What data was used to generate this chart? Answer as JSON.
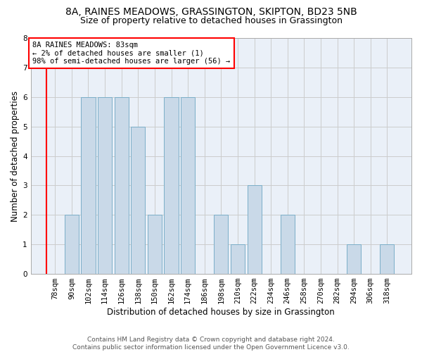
{
  "title1": "8A, RAINES MEADOWS, GRASSINGTON, SKIPTON, BD23 5NB",
  "title2": "Size of property relative to detached houses in Grassington",
  "xlabel": "Distribution of detached houses by size in Grassington",
  "ylabel": "Number of detached properties",
  "categories": [
    "78sqm",
    "90sqm",
    "102sqm",
    "114sqm",
    "126sqm",
    "138sqm",
    "150sqm",
    "162sqm",
    "174sqm",
    "186sqm",
    "198sqm",
    "210sqm",
    "222sqm",
    "234sqm",
    "246sqm",
    "258sqm",
    "270sqm",
    "282sqm",
    "294sqm",
    "306sqm",
    "318sqm"
  ],
  "values": [
    0,
    2,
    6,
    6,
    6,
    5,
    2,
    6,
    6,
    0,
    2,
    1,
    3,
    0,
    2,
    0,
    0,
    0,
    1,
    0,
    1
  ],
  "bar_color": "#c9d9e8",
  "bar_edge_color": "#7baec8",
  "annotation_box_text": "8A RAINES MEADOWS: 83sqm\n← 2% of detached houses are smaller (1)\n98% of semi-detached houses are larger (56) →",
  "annotation_box_color": "white",
  "annotation_box_edge_color": "red",
  "ylim": [
    0,
    8
  ],
  "yticks": [
    0,
    1,
    2,
    3,
    4,
    5,
    6,
    7,
    8
  ],
  "grid_color": "#cccccc",
  "bg_color": "#eaf0f8",
  "footer_text": "Contains HM Land Registry data © Crown copyright and database right 2024.\nContains public sector information licensed under the Open Government Licence v3.0.",
  "title1_fontsize": 10,
  "title2_fontsize": 9,
  "xlabel_fontsize": 8.5,
  "ylabel_fontsize": 8.5,
  "footer_fontsize": 6.5,
  "annotation_fontsize": 7.5,
  "tick_fontsize": 7.5
}
